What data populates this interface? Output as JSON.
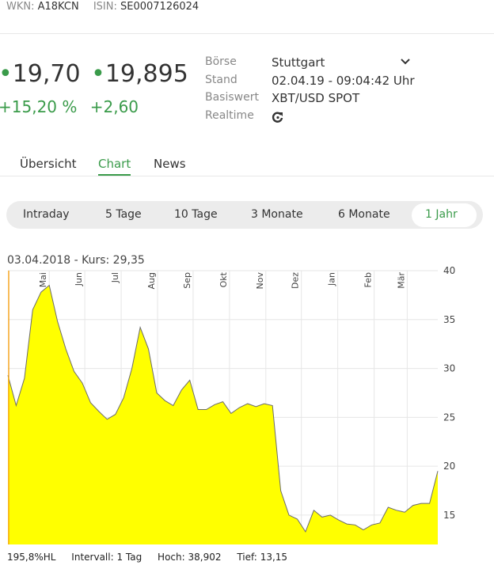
{
  "header": {
    "wkn_label": "WKN:",
    "wkn": "A18KCN",
    "isin_label": "ISIN:",
    "isin": "SE0007126024"
  },
  "quote": {
    "bid": "19,70",
    "ask": "19,895",
    "change_percent": "+15,20 %",
    "change_absolute": "+2,60"
  },
  "details": [
    {
      "label": "Börse",
      "value": "Stuttgart"
    },
    {
      "label": "Stand",
      "value": "02.04.19 - 09:04:42 Uhr"
    },
    {
      "label": "Basiswert",
      "value": "XBT/USD SPOT"
    },
    {
      "label": "Realtime"
    }
  ],
  "tabs": [
    "Übersicht",
    "Chart",
    "News"
  ],
  "active_tab": 1,
  "ranges": [
    "Intraday",
    "5 Tage",
    "10 Tage",
    "3 Monate",
    "6 Monate",
    "1 Jahr"
  ],
  "active_range": 5,
  "chart_data": {
    "type": "area",
    "crosshair_label": "03.04.2018  -  Kurs: 29,35",
    "values": [
      29.3,
      26.2,
      29,
      36,
      37.8,
      38.5,
      34.8,
      32,
      29.7,
      28.5,
      26.5,
      25.6,
      24.8,
      25.3,
      27,
      30,
      34.2,
      32,
      27.5,
      26.7,
      26.2,
      27.8,
      28.8,
      25.8,
      25.8,
      26.3,
      26.6,
      25.4,
      26,
      26.4,
      26.1,
      26.4,
      26.2,
      17.5,
      15,
      14.6,
      13.3,
      15.5,
      14.8,
      15,
      14.5,
      14.1,
      14,
      13.5,
      14,
      14.2,
      15.8,
      15.5,
      15.3,
      16,
      16.2,
      16.2,
      19.5
    ],
    "color": "#ffff00",
    "line_color": "#6b6b6b",
    "grid": true,
    "xlim": [
      0,
      52
    ],
    "xticks": [
      {
        "value": 5,
        "label": "Mai"
      },
      {
        "value": 9.3,
        "label": "Jun"
      },
      {
        "value": 13.7,
        "label": "Jul"
      },
      {
        "value": 18.1,
        "label": "Aug"
      },
      {
        "value": 22.4,
        "label": "Sep"
      },
      {
        "value": 26.8,
        "label": "Okt"
      },
      {
        "value": 31.2,
        "label": "Nov"
      },
      {
        "value": 35.5,
        "label": "Dez"
      },
      {
        "value": 39.9,
        "label": "Jan"
      },
      {
        "value": 44.3,
        "label": "Feb"
      },
      {
        "value": 48.3,
        "label": "Mär"
      }
    ],
    "ylim": [
      12,
      40
    ],
    "yticks": [
      15,
      20,
      25,
      30,
      35,
      40
    ],
    "footer": {
      "range_hl": "195,8%HL",
      "interval": "Intervall: 1 Tag",
      "high_label": "Hoch:",
      "high": "38,902",
      "low_label": "Tief:",
      "low": "13,15"
    }
  }
}
